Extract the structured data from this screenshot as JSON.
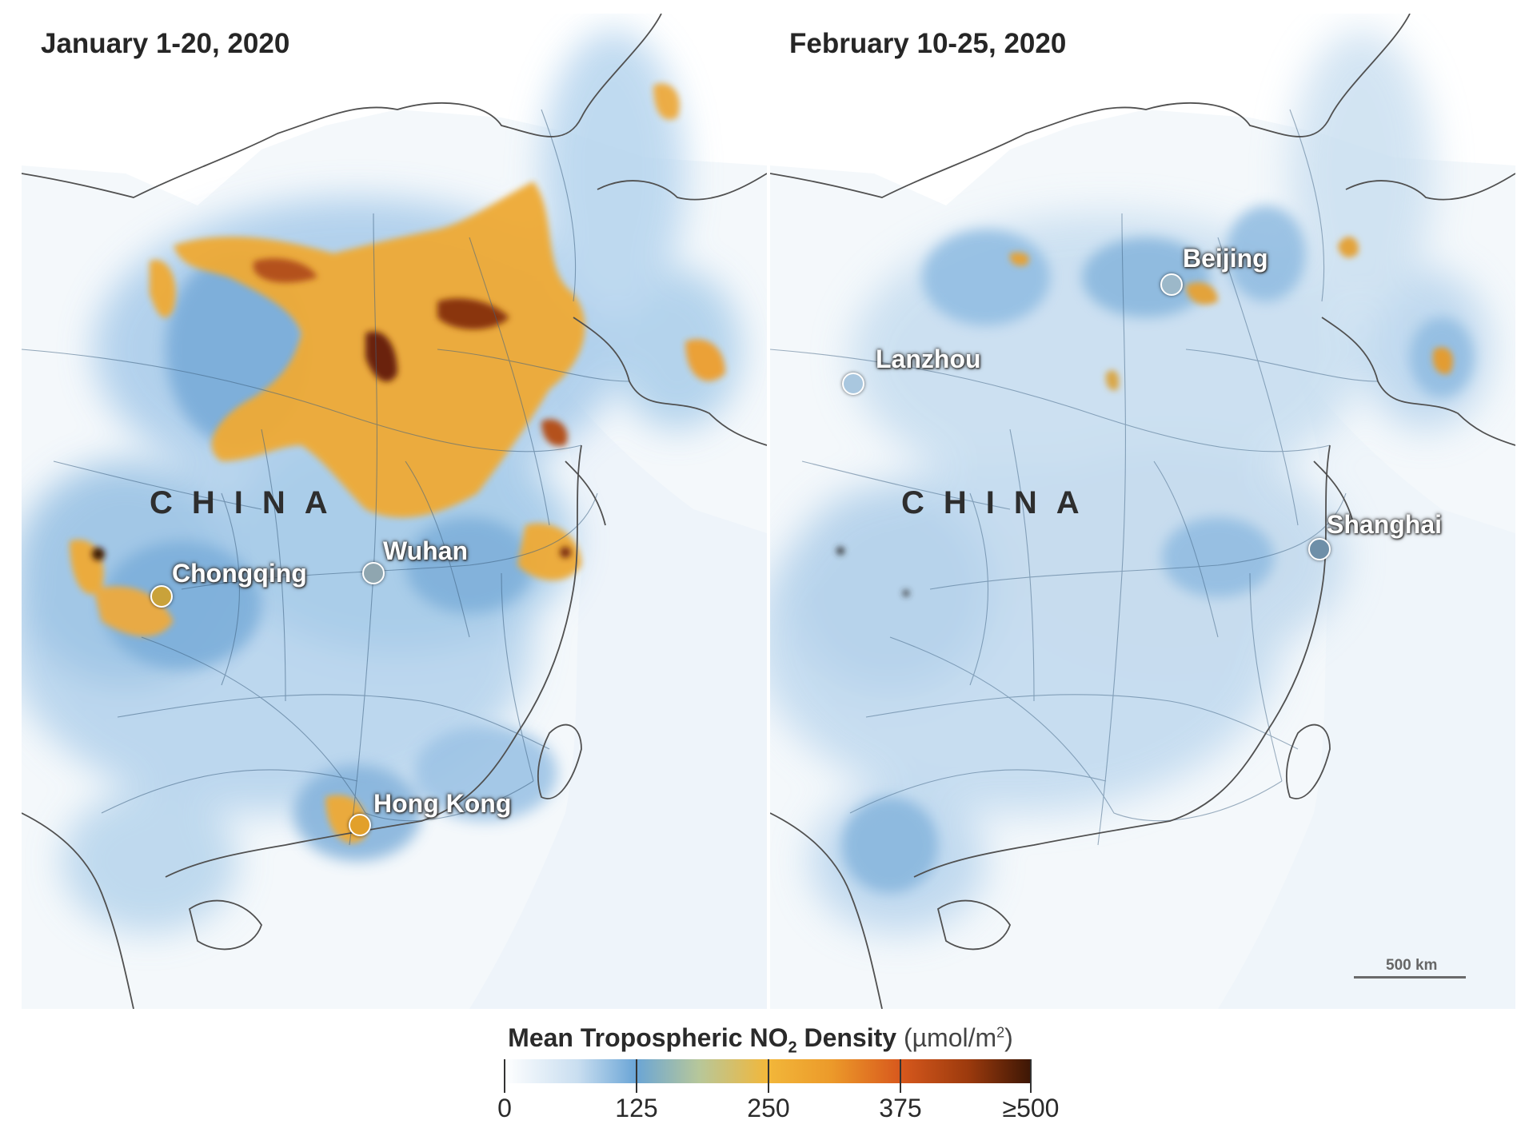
{
  "panels": [
    {
      "title": "January 1-20, 2020",
      "country_label": "CHINA",
      "cities": [
        {
          "name": "Chongqing",
          "marker_color": "#c9a23a"
        },
        {
          "name": "Wuhan",
          "marker_color": "#8fa6b0"
        },
        {
          "name": "Hong Kong",
          "marker_color": "#e2a02a"
        }
      ]
    },
    {
      "title": "February 10-25, 2020",
      "country_label": "CHINA",
      "cities": [
        {
          "name": "Beijing",
          "marker_color": "#9cb8c9"
        },
        {
          "name": "Lanzhou",
          "marker_color": "#a9c7df"
        },
        {
          "name": "Shanghai",
          "marker_color": "#6e8fa8"
        }
      ],
      "scale_bar": "500 km"
    }
  ],
  "legend": {
    "title_main": "Mean Tropospheric NO",
    "title_sub": "2",
    "title_end": " Density",
    "unit_prefix": "(µmol/m",
    "unit_sup": "2",
    "unit_suffix": ")",
    "ticks": [
      "0",
      "125",
      "250",
      "375",
      "≥500"
    ],
    "colors": {
      "low": "#ffffff",
      "blue": "#6aa5d6",
      "orange": "#f2b73a",
      "dark": "#3b1605"
    }
  },
  "colors": {
    "land": "#f2f7fb",
    "border": "#555555",
    "roads": "#3d5f7f",
    "no2_low": "#8fbde3",
    "no2_mid": "#f0ad34",
    "no2_high": "#4a1b07"
  }
}
